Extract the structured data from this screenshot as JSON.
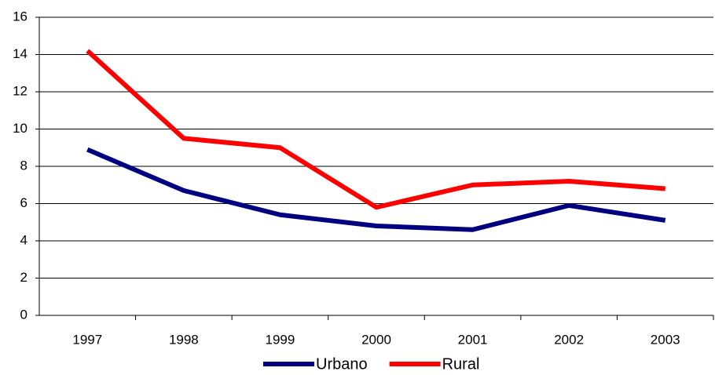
{
  "chart_data": {
    "type": "line",
    "categories": [
      "1997",
      "1998",
      "1999",
      "2000",
      "2001",
      "2002",
      "2003"
    ],
    "series": [
      {
        "name": "Urbano",
        "color": "#000080",
        "values": [
          8.9,
          6.7,
          5.4,
          4.8,
          4.6,
          5.9,
          5.1
        ]
      },
      {
        "name": "Rural",
        "color": "#ff0000",
        "values": [
          14.2,
          9.5,
          9.0,
          5.8,
          7.0,
          7.2,
          6.8
        ]
      }
    ],
    "ylim": [
      0,
      16
    ],
    "yticks": [
      0,
      2,
      4,
      6,
      8,
      10,
      12,
      14,
      16
    ],
    "grid": true,
    "legend": "bottom"
  }
}
